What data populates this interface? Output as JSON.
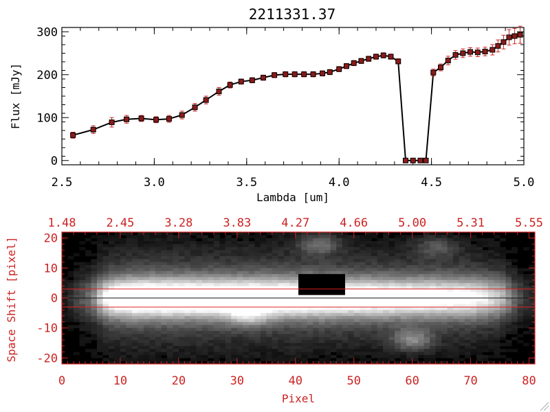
{
  "colors": {
    "axis": "#000000",
    "accent": "#cc2222",
    "error_bar": "#cc2222",
    "marker_fill": "#8b1a1a",
    "spectrum_bg": "#000000"
  },
  "chart_data": [
    {
      "type": "line",
      "title": "2211331.37",
      "xlabel": "Lambda [um]",
      "ylabel": "Flux [mJy]",
      "xlim": [
        2.5,
        5.0
      ],
      "ylim": [
        -10,
        310
      ],
      "x_ticks": [
        2.5,
        3.0,
        3.5,
        4.0,
        4.5,
        5.0
      ],
      "x_tick_labels": [
        "2.5",
        "3.0",
        "3.5",
        "4.0",
        "4.5",
        "5.0"
      ],
      "y_ticks": [
        0,
        100,
        200,
        300
      ],
      "y_tick_labels": [
        "0",
        "100",
        "200",
        "300"
      ],
      "series": [
        {
          "name": "flux",
          "x": [
            2.56,
            2.67,
            2.77,
            2.85,
            2.93,
            3.01,
            3.08,
            3.15,
            3.22,
            3.28,
            3.35,
            3.41,
            3.47,
            3.53,
            3.59,
            3.65,
            3.71,
            3.76,
            3.81,
            3.86,
            3.91,
            3.95,
            4.0,
            4.04,
            4.08,
            4.12,
            4.16,
            4.2,
            4.24,
            4.28,
            4.32,
            4.36,
            4.4,
            4.44,
            4.47,
            4.51,
            4.55,
            4.59,
            4.63,
            4.67,
            4.71,
            4.75,
            4.79,
            4.83,
            4.86,
            4.89,
            4.92,
            4.95,
            4.98
          ],
          "y": [
            59,
            72,
            89,
            96,
            98,
            95,
            97,
            106,
            124,
            141,
            161,
            176,
            184,
            187,
            193,
            199,
            201,
            201,
            201,
            201,
            203,
            206,
            213,
            220,
            227,
            232,
            237,
            242,
            245,
            242,
            231,
            0,
            0,
            0,
            0,
            205,
            217,
            233,
            246,
            250,
            253,
            252,
            254,
            258,
            267,
            276,
            287,
            290,
            293
          ],
          "err": [
            7,
            9,
            11,
            9,
            7,
            7,
            8,
            9,
            9,
            9,
            9,
            7,
            6,
            6,
            6,
            6,
            6,
            6,
            6,
            6,
            6,
            6,
            6,
            6,
            6,
            6,
            6,
            6,
            6,
            6,
            6,
            0,
            0,
            0,
            0,
            8,
            8,
            10,
            10,
            10,
            10,
            10,
            10,
            12,
            14,
            16,
            18,
            18,
            20
          ]
        }
      ]
    },
    {
      "type": "heatmap",
      "title": "",
      "xlabel": "Pixel",
      "ylabel": "Space Shift [pixel]",
      "xlim": [
        0,
        81
      ],
      "ylim": [
        -22,
        22
      ],
      "x_ticks": [
        0,
        10,
        20,
        30,
        40,
        50,
        60,
        70,
        80
      ],
      "x_tick_labels": [
        "0",
        "10",
        "20",
        "30",
        "40",
        "50",
        "60",
        "70",
        "80"
      ],
      "y_ticks": [
        -20,
        -10,
        0,
        10,
        20
      ],
      "y_tick_labels": [
        "-20",
        "-10",
        "0",
        "10",
        "20"
      ],
      "top_axis_labels": [
        "1.48",
        "2.45",
        "3.28",
        "3.83",
        "4.27",
        "4.66",
        "5.00",
        "5.31",
        "5.55"
      ],
      "extraction_aperture": [
        -3,
        3
      ],
      "trace_center": 0,
      "trace_profile": {
        "pixel": [
          0,
          5,
          8,
          12,
          20,
          30,
          40,
          50,
          60,
          70,
          75,
          78,
          81
        ],
        "peak_intensity": [
          0.05,
          0.35,
          0.85,
          1.0,
          1.0,
          0.98,
          0.95,
          0.9,
          0.85,
          0.8,
          0.6,
          0.25,
          0.1
        ],
        "sigma": 4.5
      },
      "masked_region": {
        "pixel": [
          40.5,
          48.5
        ],
        "shift": [
          1,
          8
        ]
      },
      "sources": [
        {
          "pixel": 44,
          "shift": 18,
          "intensity": 0.35
        },
        {
          "pixel": 64,
          "shift": 17,
          "intensity": 0.25
        },
        {
          "pixel": 60,
          "shift": -14,
          "intensity": 0.4
        },
        {
          "pixel": 32,
          "shift": -6,
          "intensity": 0.3
        }
      ]
    }
  ]
}
